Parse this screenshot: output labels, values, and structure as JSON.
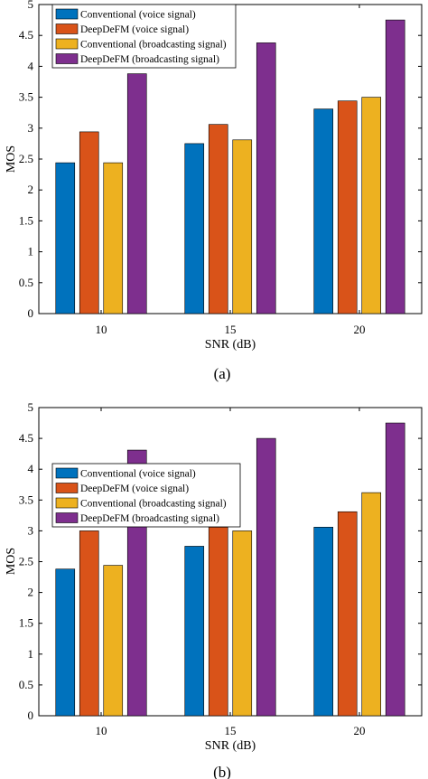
{
  "colors": {
    "series": [
      "#0072BD",
      "#D95319",
      "#EDB120",
      "#7E2F8E"
    ],
    "axis": "#000000",
    "background": "#ffffff"
  },
  "chart_data": [
    {
      "type": "bar",
      "panel_label": "(a)",
      "categories": [
        "10",
        "15",
        "20"
      ],
      "series": [
        {
          "name": "Conventional (voice signal)",
          "values": [
            2.44,
            2.75,
            3.31
          ]
        },
        {
          "name": "DeepDeFM (voice signal)",
          "values": [
            2.94,
            3.06,
            3.44
          ]
        },
        {
          "name": "Conventional (broadcasting signal)",
          "values": [
            2.44,
            2.81,
            3.5
          ]
        },
        {
          "name": "DeepDeFM (broadcasting signal)",
          "values": [
            3.88,
            4.38,
            4.75
          ]
        }
      ],
      "xlabel": "SNR (dB)",
      "ylabel": "MOS",
      "ylim": [
        0,
        5
      ],
      "yticks": [
        "0",
        "0.5",
        "1",
        "1.5",
        "2",
        "2.5",
        "3",
        "3.5",
        "4",
        "4.5",
        "5"
      ],
      "grid": false,
      "legend_position": "top-left"
    },
    {
      "type": "bar",
      "panel_label": "(b)",
      "categories": [
        "10",
        "15",
        "20"
      ],
      "series": [
        {
          "name": "Conventional (voice signal)",
          "values": [
            2.38,
            2.75,
            3.06
          ]
        },
        {
          "name": "DeepDeFM (voice signal)",
          "values": [
            3.0,
            3.06,
            3.31
          ]
        },
        {
          "name": "Conventional (broadcasting signal)",
          "values": [
            2.44,
            3.0,
            3.62
          ]
        },
        {
          "name": "DeepDeFM (broadcasting signal)",
          "values": [
            4.31,
            4.5,
            4.75
          ]
        }
      ],
      "xlabel": "SNR (dB)",
      "ylabel": "MOS",
      "ylim": [
        0,
        5
      ],
      "yticks": [
        "0",
        "0.5",
        "1",
        "1.5",
        "2",
        "2.5",
        "3",
        "3.5",
        "4",
        "4.5",
        "5"
      ],
      "grid": false,
      "legend_position": "middle-left"
    }
  ]
}
